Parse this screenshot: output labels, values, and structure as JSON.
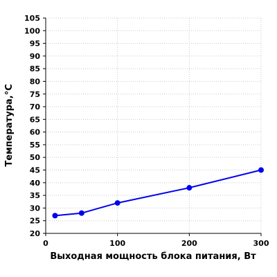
{
  "chart_data": {
    "type": "line",
    "title": "",
    "xlabel": "Выходная мощность блока питания, Вт",
    "ylabel": "Температура,°С",
    "xlim": [
      0,
      300
    ],
    "ylim": [
      20,
      105
    ],
    "x_ticks": [
      0,
      100,
      200,
      300
    ],
    "y_ticks": [
      20,
      25,
      30,
      35,
      40,
      45,
      50,
      55,
      60,
      65,
      70,
      75,
      80,
      85,
      90,
      95,
      100,
      105
    ],
    "x_tick_labels": [
      "0",
      "100",
      "200",
      "300"
    ],
    "y_tick_labels": [
      "20",
      "25",
      "30",
      "35",
      "40",
      "45",
      "50",
      "55",
      "60",
      "65",
      "70",
      "75",
      "80",
      "85",
      "90",
      "95",
      "100",
      "105"
    ],
    "grid": true,
    "series": [
      {
        "x": [
          13,
          50,
          100,
          200,
          300
        ],
        "y": [
          27,
          28,
          32,
          38,
          45
        ],
        "color": "#0000ee",
        "marker": "circle"
      }
    ]
  }
}
